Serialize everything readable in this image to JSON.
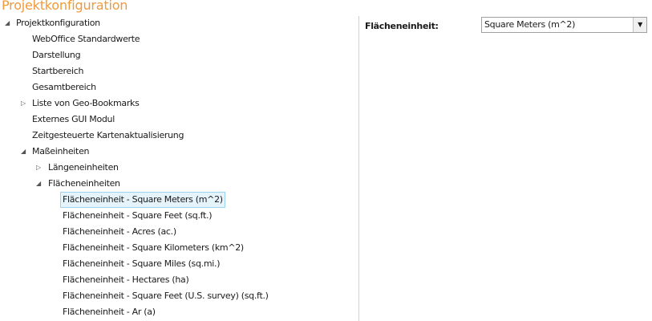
{
  "title": "Projektkonfiguration",
  "tree": [
    {
      "label": "Projektkonfiguration",
      "level": 0,
      "expander": "expanded"
    },
    {
      "label": "WebOffice Standardwerte",
      "level": 1
    },
    {
      "label": "Darstellung",
      "level": 1
    },
    {
      "label": "Startbereich",
      "level": 1
    },
    {
      "label": "Gesamtbereich",
      "level": 1
    },
    {
      "label": "Liste von Geo-Bookmarks",
      "level": 1,
      "expander": "collapsed"
    },
    {
      "label": "Externes GUI Modul",
      "level": 1
    },
    {
      "label": "Zeitgesteuerte Kartenaktualisierung",
      "level": 1
    },
    {
      "label": "Maßeinheiten",
      "level": 1,
      "expander": "expanded"
    },
    {
      "label": "Längeneinheiten",
      "level": 2,
      "expander": "collapsed"
    },
    {
      "label": "Flächeneinheiten",
      "level": 2,
      "expander": "expanded"
    },
    {
      "label": "Flächeneinheit - Square Meters (m^2)",
      "level": 3,
      "selected": true
    },
    {
      "label": "Flächeneinheit - Square Feet (sq.ft.)",
      "level": 3
    },
    {
      "label": "Flächeneinheit - Acres (ac.)",
      "level": 3
    },
    {
      "label": "Flächeneinheit - Square Kilometers (km^2)",
      "level": 3
    },
    {
      "label": "Flächeneinheit - Square Miles (sq.mi.)",
      "level": 3
    },
    {
      "label": "Flächeneinheit - Hectares (ha)",
      "level": 3
    },
    {
      "label": "Flächeneinheit - Square Feet (U.S. survey) (sq.ft.)",
      "level": 3
    },
    {
      "label": "Flächeneinheit - Ar (a)",
      "level": 3
    }
  ],
  "properties": {
    "label": "Flächeneinheit:",
    "value": "Square Meters (m^2)"
  },
  "colors": {
    "title": "#f09a3a",
    "selection_bg": "#e5f3fb",
    "selection_border": "#9ed3f0"
  }
}
